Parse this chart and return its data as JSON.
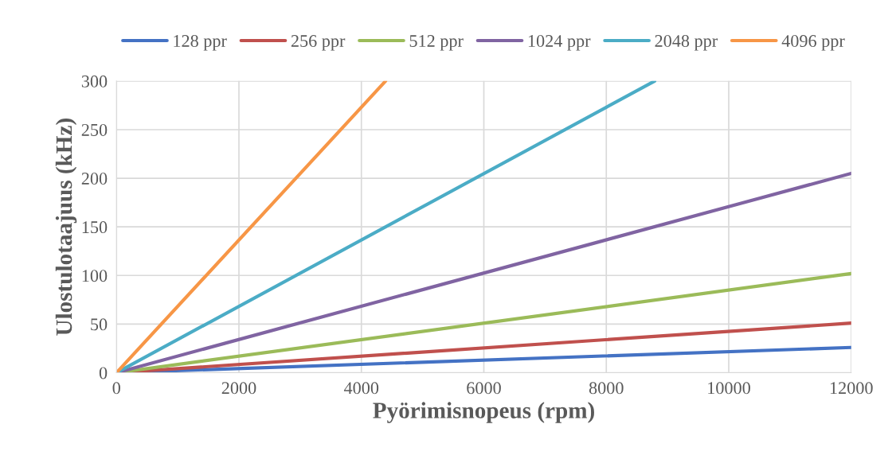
{
  "chart_data": {
    "type": "line",
    "xlabel": "Pyörimisnopeus (rpm)",
    "ylabel": "Ulostulotaajuus (kHz)",
    "series": [
      {
        "name": "128 ppr",
        "color": "#4472c4",
        "x": [
          0,
          12000
        ],
        "values": [
          0,
          26
        ]
      },
      {
        "name": "256 ppr",
        "color": "#c0504d",
        "x": [
          0,
          12000
        ],
        "values": [
          0,
          51
        ]
      },
      {
        "name": "512 ppr",
        "color": "#9bbb59",
        "x": [
          0,
          12000
        ],
        "values": [
          0,
          102
        ]
      },
      {
        "name": "1024 ppr",
        "color": "#8064a2",
        "x": [
          0,
          12000
        ],
        "values": [
          0,
          205
        ]
      },
      {
        "name": "2048 ppr",
        "color": "#4bacc6",
        "x": [
          0,
          8790
        ],
        "values": [
          0,
          300
        ]
      },
      {
        "name": "4096 ppr",
        "color": "#f79646",
        "x": [
          0,
          4395
        ],
        "values": [
          0,
          300
        ]
      }
    ],
    "xlim": [
      0,
      12000
    ],
    "xticks": [
      0,
      2000,
      4000,
      6000,
      8000,
      10000,
      12000
    ],
    "ylim": [
      0,
      300
    ],
    "yticks": [
      0,
      50,
      100,
      150,
      200,
      250,
      300
    ],
    "grid": true,
    "legend": "top",
    "marker": "none",
    "line_style": "solid"
  }
}
